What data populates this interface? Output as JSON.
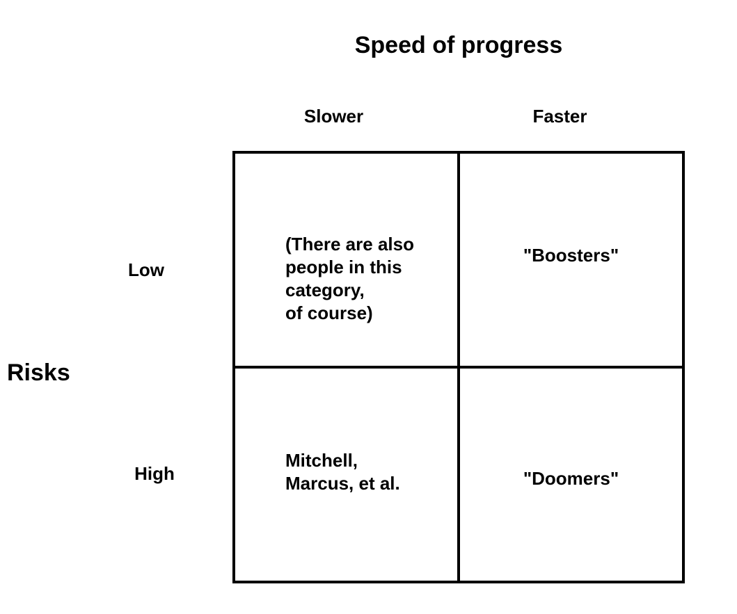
{
  "title": "Speed of progress",
  "x_axis": {
    "labels": {
      "slower": "Slower",
      "faster": "Faster"
    }
  },
  "y_axis": {
    "title": "Risks",
    "labels": {
      "low": "Low",
      "high": "High"
    }
  },
  "cells": {
    "low_slower": "(There are also\npeople in this\ncategory,\nof course)",
    "low_faster": "\"Boosters\"",
    "high_slower": "Mitchell,\nMarcus, et al.",
    "high_faster": "\"Doomers\""
  },
  "colors": {
    "line": "#000000",
    "text": "#000000",
    "background": "#ffffff"
  }
}
